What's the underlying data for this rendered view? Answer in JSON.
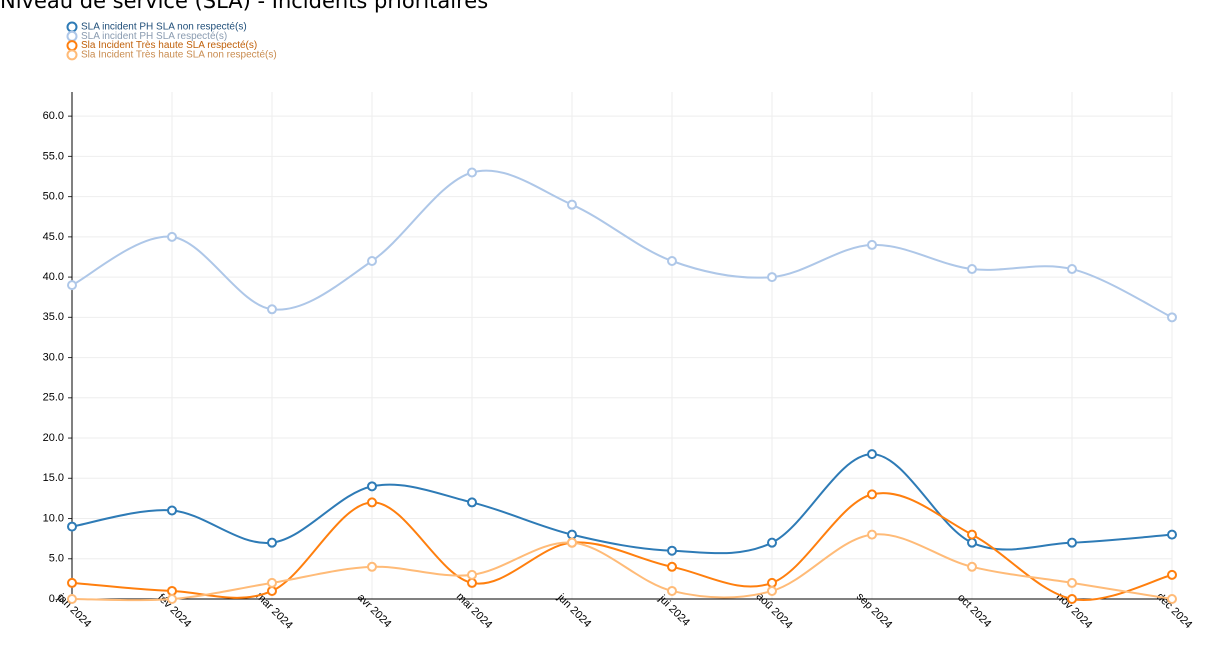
{
  "chart_data": {
    "type": "line",
    "title": "Niveau de service (SLA) - Incidents prioritaires",
    "categories": [
      "jan 2024",
      "fév 2024",
      "mar 2024",
      "avr 2024",
      "mai 2024",
      "jun 2024",
      "jui 2024",
      "aoû 2024",
      "sep 2024",
      "oct 2024",
      "nov 2024",
      "déc 2024"
    ],
    "series": [
      {
        "name": "SLA incident PH SLA non respecté(s)",
        "color": "#2e7bb6",
        "values": [
          9,
          11,
          7,
          14,
          12,
          8,
          6,
          7,
          18,
          7,
          7,
          8
        ]
      },
      {
        "name": "SLA incident PH SLA respecté(s)",
        "color": "#aec7e8",
        "values": [
          39,
          45,
          36,
          42,
          53,
          49,
          42,
          40,
          44,
          41,
          41,
          35
        ]
      },
      {
        "name": "Sla Incident Très haute SLA respecté(s)",
        "color": "#ff7f0e",
        "values": [
          2,
          1,
          1,
          12,
          2,
          7,
          4,
          2,
          13,
          8,
          0,
          3
        ]
      },
      {
        "name": "Sla Incident Très haute SLA non respecté(s)",
        "color": "#ffbb78",
        "values": [
          0,
          0,
          2,
          4,
          3,
          7,
          1,
          1,
          8,
          4,
          2,
          0
        ]
      }
    ],
    "ylim": [
      0,
      63
    ],
    "yticks": [
      {
        "value": 0,
        "label": "0.0"
      },
      {
        "value": 5,
        "label": "5.0"
      },
      {
        "value": 10,
        "label": "10.0"
      },
      {
        "value": 15,
        "label": "15.0"
      },
      {
        "value": 20,
        "label": "20.0"
      },
      {
        "value": 25,
        "label": "25.0"
      },
      {
        "value": 30,
        "label": "30.0"
      },
      {
        "value": 35,
        "label": "35.0"
      },
      {
        "value": 40,
        "label": "40.0"
      },
      {
        "value": 45,
        "label": "45.0"
      },
      {
        "value": 50,
        "label": "50.0"
      },
      {
        "value": 55,
        "label": "55.0"
      },
      {
        "value": 60,
        "label": "60.0"
      }
    ],
    "grid": true,
    "legend": "top-left"
  }
}
